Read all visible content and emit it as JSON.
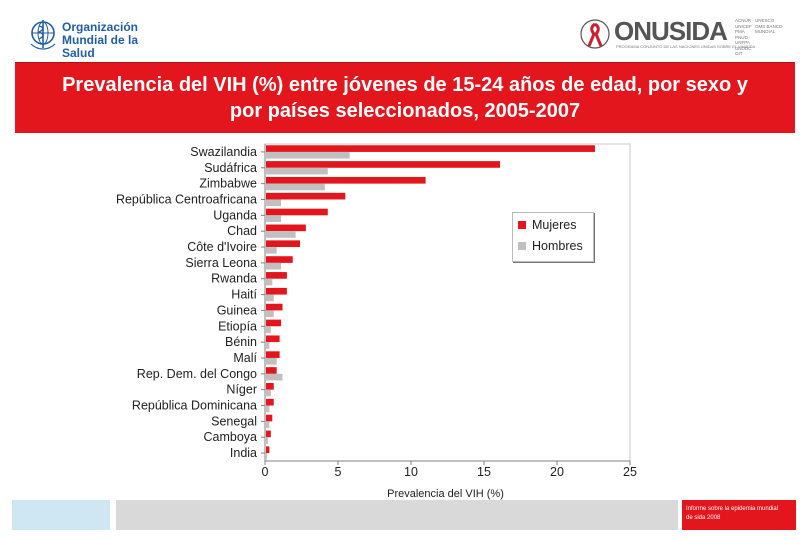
{
  "header": {
    "who_name": "Organización Mundial de la Salud",
    "unaids_name": "ONUSIDA",
    "unaids_subtitle": "PROGRAMA CONJUNTO DE LAS NACIONES UNIDAS SOBRE EL VIH/SIDA",
    "unaids_cosponsors_col1": "ACNUR UNICEF PMA PNUD UNFPA UNODC OIT",
    "unaids_cosponsors_col2": "UNESCO OMS BANCO MUNDIAL"
  },
  "title": "Prevalencia del VIH (%) entre jóvenes de 15-24 años de edad, por sexo y por países seleccionados, 2005-2007",
  "footer": {
    "note": "Informe sobre la epidemia mundial de sida 2008"
  },
  "colors": {
    "women": "#e3161d",
    "men": "#c0c0c0",
    "banner": "#e3161d"
  },
  "chart_data": {
    "type": "bar",
    "orientation": "horizontal",
    "categories": [
      "Swazilandia",
      "Sudáfrica",
      "Zimbabwe",
      "República Centroafricana",
      "Uganda",
      "Chad",
      "Côte d'Ivoire",
      "Sierra Leona",
      "Rwanda",
      "Haití",
      "Guinea",
      "Etiopía",
      "Bénin",
      "Malí",
      "Rep. Dem. del Congo",
      "Níger",
      "República Dominicana",
      "Senegal",
      "Camboya",
      "India"
    ],
    "series": [
      {
        "name": "Mujeres",
        "color": "#e3161d",
        "values": [
          22.6,
          16.1,
          11.0,
          5.5,
          4.3,
          2.8,
          2.4,
          1.9,
          1.5,
          1.5,
          1.2,
          1.1,
          1.0,
          1.0,
          0.8,
          0.6,
          0.6,
          0.5,
          0.4,
          0.3
        ]
      },
      {
        "name": "Hombres",
        "color": "#c0c0c0",
        "values": [
          5.8,
          4.3,
          4.1,
          1.1,
          1.1,
          2.1,
          0.8,
          1.1,
          0.5,
          0.6,
          0.6,
          0.4,
          0.3,
          0.8,
          1.2,
          0.4,
          0.3,
          0.3,
          0.2,
          0.1
        ]
      }
    ],
    "xlabel": "Prevalencia del VIH (%)",
    "xlim": [
      0,
      25
    ],
    "xticks": [
      0,
      5,
      10,
      15,
      20,
      25
    ],
    "legend_position": "right"
  }
}
